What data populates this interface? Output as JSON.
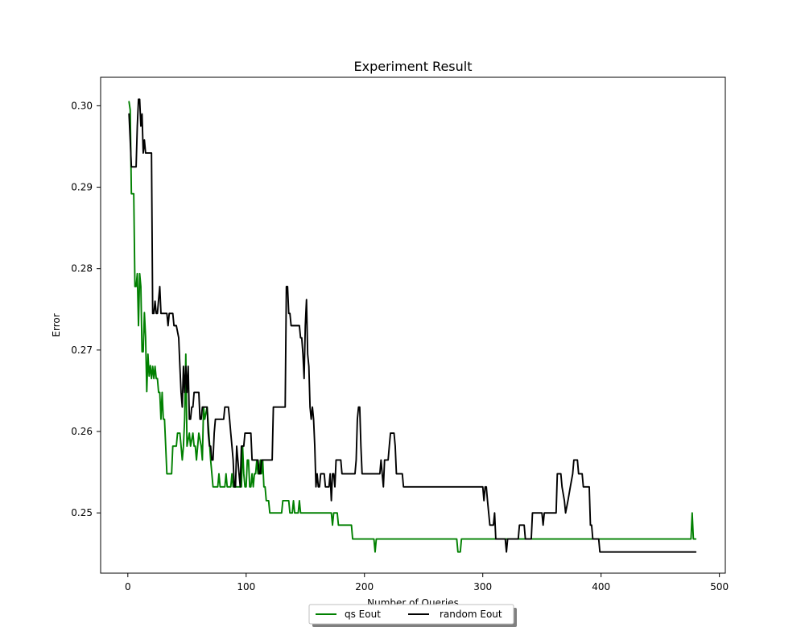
{
  "chart_data": {
    "type": "line",
    "title": "Experiment Result",
    "xlabel": "Number of Queries",
    "ylabel": "Error",
    "xlim": [
      -23,
      505
    ],
    "ylim": [
      0.2426,
      0.3035
    ],
    "x_ticks": [
      0,
      100,
      200,
      300,
      400,
      500
    ],
    "x_tick_labels": [
      "0",
      "100",
      "200",
      "300",
      "400",
      "500"
    ],
    "y_ticks": [
      0.25,
      0.26,
      0.27,
      0.28,
      0.29,
      0.3
    ],
    "y_tick_labels": [
      "0.25",
      "0.26",
      "0.27",
      "0.28",
      "0.29",
      "0.30"
    ],
    "grid": false,
    "legend": {
      "placement": "bottom-center",
      "ncol": 2,
      "entries": [
        "qs Eout",
        "random Eout"
      ]
    },
    "series": [
      {
        "name": "qs Eout",
        "color": "#008000",
        "points": [
          [
            1,
            0.3005
          ],
          [
            2,
            0.2995
          ],
          [
            3,
            0.2892
          ],
          [
            4,
            0.2892
          ],
          [
            5,
            0.2892
          ],
          [
            6,
            0.2778
          ],
          [
            7,
            0.2778
          ],
          [
            8,
            0.2794
          ],
          [
            9,
            0.273
          ],
          [
            10,
            0.2794
          ],
          [
            11,
            0.2778
          ],
          [
            12,
            0.2698
          ],
          [
            13,
            0.2698
          ],
          [
            14,
            0.2746
          ],
          [
            15,
            0.2716
          ],
          [
            16,
            0.2649
          ],
          [
            17,
            0.2695
          ],
          [
            18,
            0.2668
          ],
          [
            19,
            0.2681
          ],
          [
            20,
            0.2665
          ],
          [
            21,
            0.268
          ],
          [
            22,
            0.2665
          ],
          [
            23,
            0.268
          ],
          [
            24,
            0.2665
          ],
          [
            25,
            0.2665
          ],
          [
            26,
            0.2648
          ],
          [
            27,
            0.2648
          ],
          [
            28,
            0.2615
          ],
          [
            29,
            0.2648
          ],
          [
            30,
            0.2615
          ],
          [
            31,
            0.2615
          ],
          [
            32,
            0.2582
          ],
          [
            33,
            0.2548
          ],
          [
            37,
            0.2548
          ],
          [
            38,
            0.2582
          ],
          [
            41,
            0.2582
          ],
          [
            42,
            0.2598
          ],
          [
            44,
            0.2598
          ],
          [
            45,
            0.2582
          ],
          [
            46,
            0.2565
          ],
          [
            47,
            0.2582
          ],
          [
            48,
            0.2615
          ],
          [
            49,
            0.2695
          ],
          [
            50,
            0.2582
          ],
          [
            52,
            0.2598
          ],
          [
            53,
            0.2582
          ],
          [
            55,
            0.2598
          ],
          [
            56,
            0.2582
          ],
          [
            57,
            0.2582
          ],
          [
            58,
            0.2565
          ],
          [
            60,
            0.2598
          ],
          [
            62,
            0.2582
          ],
          [
            63,
            0.2565
          ],
          [
            64,
            0.263
          ],
          [
            65,
            0.2615
          ],
          [
            67,
            0.263
          ],
          [
            70,
            0.2565
          ],
          [
            72,
            0.2532
          ],
          [
            76,
            0.2532
          ],
          [
            77,
            0.2548
          ],
          [
            78,
            0.2532
          ],
          [
            82,
            0.2532
          ],
          [
            83,
            0.2548
          ],
          [
            84,
            0.2532
          ],
          [
            87,
            0.2532
          ],
          [
            88,
            0.2548
          ],
          [
            89,
            0.2532
          ],
          [
            96,
            0.2532
          ],
          [
            97,
            0.2582
          ],
          [
            98,
            0.2548
          ],
          [
            99,
            0.2532
          ],
          [
            100,
            0.2532
          ],
          [
            101,
            0.2565
          ],
          [
            102,
            0.2565
          ],
          [
            103,
            0.2532
          ],
          [
            104,
            0.2532
          ],
          [
            105,
            0.2548
          ],
          [
            106,
            0.2532
          ],
          [
            107,
            0.2548
          ],
          [
            108,
            0.2548
          ],
          [
            109,
            0.2565
          ],
          [
            110,
            0.2548
          ],
          [
            111,
            0.2548
          ],
          [
            112,
            0.2565
          ],
          [
            113,
            0.2548
          ],
          [
            114,
            0.2565
          ],
          [
            115,
            0.2532
          ],
          [
            116,
            0.2532
          ],
          [
            117,
            0.2515
          ],
          [
            118,
            0.2515
          ],
          [
            119,
            0.2515
          ],
          [
            120,
            0.25
          ],
          [
            130,
            0.25
          ],
          [
            131,
            0.2515
          ],
          [
            136,
            0.2515
          ],
          [
            137,
            0.25
          ],
          [
            139,
            0.25
          ],
          [
            140,
            0.2515
          ],
          [
            141,
            0.25
          ],
          [
            144,
            0.25
          ],
          [
            145,
            0.2515
          ],
          [
            146,
            0.25
          ],
          [
            172,
            0.25
          ],
          [
            173,
            0.2485
          ],
          [
            174,
            0.25
          ],
          [
            177,
            0.25
          ],
          [
            178,
            0.2485
          ],
          [
            189,
            0.2485
          ],
          [
            190,
            0.2468
          ],
          [
            208,
            0.2468
          ],
          [
            209,
            0.2452
          ],
          [
            210,
            0.2468
          ],
          [
            278,
            0.2468
          ],
          [
            279,
            0.2452
          ],
          [
            281,
            0.2452
          ],
          [
            282,
            0.2468
          ],
          [
            476,
            0.2468
          ],
          [
            477,
            0.25
          ],
          [
            478,
            0.2468
          ],
          [
            480,
            0.2468
          ]
        ]
      },
      {
        "name": "random Eout",
        "color": "#000000",
        "points": [
          [
            1,
            0.299
          ],
          [
            2,
            0.2958
          ],
          [
            3,
            0.2925
          ],
          [
            4,
            0.2925
          ],
          [
            5,
            0.2925
          ],
          [
            6,
            0.2925
          ],
          [
            7,
            0.2925
          ],
          [
            8,
            0.2975
          ],
          [
            9,
            0.3008
          ],
          [
            10,
            0.3008
          ],
          [
            11,
            0.2975
          ],
          [
            12,
            0.299
          ],
          [
            13,
            0.2942
          ],
          [
            14,
            0.2958
          ],
          [
            15,
            0.2942
          ],
          [
            17,
            0.2942
          ],
          [
            19,
            0.2942
          ],
          [
            20,
            0.2942
          ],
          [
            21,
            0.2745
          ],
          [
            22,
            0.2745
          ],
          [
            23,
            0.276
          ],
          [
            24,
            0.2745
          ],
          [
            25,
            0.2745
          ],
          [
            26,
            0.2762
          ],
          [
            27,
            0.2778
          ],
          [
            28,
            0.2745
          ],
          [
            33,
            0.2745
          ],
          [
            34,
            0.273
          ],
          [
            35,
            0.2745
          ],
          [
            38,
            0.2745
          ],
          [
            39,
            0.273
          ],
          [
            41,
            0.273
          ],
          [
            43,
            0.2715
          ],
          [
            44,
            0.268
          ],
          [
            45,
            0.2648
          ],
          [
            46,
            0.263
          ],
          [
            47,
            0.268
          ],
          [
            48,
            0.2648
          ],
          [
            49,
            0.268
          ],
          [
            50,
            0.2648
          ],
          [
            51,
            0.268
          ],
          [
            52,
            0.2615
          ],
          [
            53,
            0.2615
          ],
          [
            54,
            0.263
          ],
          [
            55,
            0.263
          ],
          [
            56,
            0.2648
          ],
          [
            60,
            0.2648
          ],
          [
            61,
            0.2615
          ],
          [
            62,
            0.2615
          ],
          [
            63,
            0.263
          ],
          [
            67,
            0.263
          ],
          [
            68,
            0.2598
          ],
          [
            69,
            0.2582
          ],
          [
            70,
            0.2582
          ],
          [
            71,
            0.2565
          ],
          [
            72,
            0.2565
          ],
          [
            73,
            0.2598
          ],
          [
            74,
            0.2615
          ],
          [
            81,
            0.2615
          ],
          [
            82,
            0.263
          ],
          [
            85,
            0.263
          ],
          [
            86,
            0.2615
          ],
          [
            87,
            0.2598
          ],
          [
            88,
            0.2582
          ],
          [
            89,
            0.2565
          ],
          [
            90,
            0.2532
          ],
          [
            91,
            0.2532
          ],
          [
            92,
            0.2582
          ],
          [
            93,
            0.2565
          ],
          [
            94,
            0.2548
          ],
          [
            95,
            0.2532
          ],
          [
            96,
            0.2582
          ],
          [
            98,
            0.2582
          ],
          [
            99,
            0.2598
          ],
          [
            104,
            0.2598
          ],
          [
            105,
            0.2565
          ],
          [
            110,
            0.2565
          ],
          [
            111,
            0.2548
          ],
          [
            112,
            0.2548
          ],
          [
            113,
            0.2565
          ],
          [
            122,
            0.2565
          ],
          [
            123,
            0.263
          ],
          [
            133,
            0.263
          ],
          [
            134,
            0.2778
          ],
          [
            135,
            0.2778
          ],
          [
            136,
            0.2745
          ],
          [
            137,
            0.2745
          ],
          [
            138,
            0.273
          ],
          [
            145,
            0.273
          ],
          [
            146,
            0.2715
          ],
          [
            147,
            0.2715
          ],
          [
            148,
            0.2695
          ],
          [
            149,
            0.2665
          ],
          [
            150,
            0.273
          ],
          [
            151,
            0.2762
          ],
          [
            152,
            0.2695
          ],
          [
            153,
            0.268
          ],
          [
            154,
            0.263
          ],
          [
            155,
            0.2615
          ],
          [
            156,
            0.263
          ],
          [
            157,
            0.2615
          ],
          [
            158,
            0.2582
          ],
          [
            159,
            0.2532
          ],
          [
            160,
            0.2548
          ],
          [
            161,
            0.2532
          ],
          [
            162,
            0.2532
          ],
          [
            163,
            0.2548
          ],
          [
            166,
            0.2548
          ],
          [
            167,
            0.2532
          ],
          [
            170,
            0.2532
          ],
          [
            171,
            0.2548
          ],
          [
            172,
            0.2515
          ],
          [
            173,
            0.2548
          ],
          [
            174,
            0.2548
          ],
          [
            175,
            0.2532
          ],
          [
            176,
            0.2565
          ],
          [
            180,
            0.2565
          ],
          [
            181,
            0.2548
          ],
          [
            192,
            0.2548
          ],
          [
            193,
            0.2565
          ],
          [
            194,
            0.2615
          ],
          [
            195,
            0.263
          ],
          [
            196,
            0.263
          ],
          [
            197,
            0.2582
          ],
          [
            198,
            0.2548
          ],
          [
            213,
            0.2548
          ],
          [
            214,
            0.2565
          ],
          [
            215,
            0.2548
          ],
          [
            216,
            0.2532
          ],
          [
            217,
            0.2565
          ],
          [
            220,
            0.2565
          ],
          [
            221,
            0.2582
          ],
          [
            222,
            0.2598
          ],
          [
            225,
            0.2598
          ],
          [
            226,
            0.2582
          ],
          [
            227,
            0.2548
          ],
          [
            232,
            0.2548
          ],
          [
            233,
            0.2532
          ],
          [
            260,
            0.2532
          ],
          [
            262,
            0.2532
          ],
          [
            265,
            0.2532
          ],
          [
            270,
            0.2532
          ],
          [
            275,
            0.2532
          ],
          [
            290,
            0.2532
          ],
          [
            300,
            0.2532
          ],
          [
            301,
            0.2515
          ],
          [
            302,
            0.2532
          ],
          [
            303,
            0.2532
          ],
          [
            304,
            0.2515
          ],
          [
            305,
            0.25
          ],
          [
            306,
            0.2485
          ],
          [
            309,
            0.2485
          ],
          [
            310,
            0.25
          ],
          [
            311,
            0.2468
          ],
          [
            319,
            0.2468
          ],
          [
            320,
            0.2452
          ],
          [
            321,
            0.2468
          ],
          [
            330,
            0.2468
          ],
          [
            331,
            0.2485
          ],
          [
            335,
            0.2485
          ],
          [
            336,
            0.2468
          ],
          [
            341,
            0.2468
          ],
          [
            342,
            0.25
          ],
          [
            350,
            0.25
          ],
          [
            351,
            0.2485
          ],
          [
            352,
            0.25
          ],
          [
            362,
            0.25
          ],
          [
            363,
            0.2548
          ],
          [
            366,
            0.2548
          ],
          [
            367,
            0.2532
          ],
          [
            369,
            0.2515
          ],
          [
            370,
            0.25
          ],
          [
            372,
            0.2515
          ],
          [
            374,
            0.2532
          ],
          [
            376,
            0.2548
          ],
          [
            377,
            0.2565
          ],
          [
            380,
            0.2565
          ],
          [
            381,
            0.2548
          ],
          [
            384,
            0.2548
          ],
          [
            385,
            0.2532
          ],
          [
            390,
            0.2532
          ],
          [
            391,
            0.2485
          ],
          [
            392,
            0.2485
          ],
          [
            393,
            0.2468
          ],
          [
            398,
            0.2468
          ],
          [
            399,
            0.2452
          ],
          [
            400,
            0.2452
          ],
          [
            480,
            0.2452
          ]
        ]
      }
    ]
  }
}
